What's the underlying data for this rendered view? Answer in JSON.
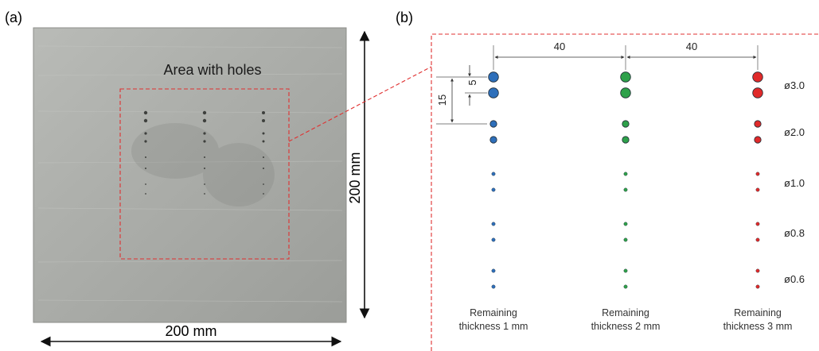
{
  "panel_a": {
    "label": "(a)",
    "area_label": "Area with holes",
    "width_label": "200 mm",
    "height_label": "200 mm"
  },
  "panel_b": {
    "label": "(b)",
    "spacing": [
      {
        "text": "40"
      },
      {
        "text": "40"
      }
    ],
    "offsets": [
      {
        "text": "5"
      },
      {
        "text": "15"
      }
    ],
    "diameters": [
      {
        "text": "ø3.0",
        "value": 3.0
      },
      {
        "text": "ø2.0",
        "value": 2.0
      },
      {
        "text": "ø1.0",
        "value": 1.0
      },
      {
        "text": "ø0.8",
        "value": 0.8
      },
      {
        "text": "ø0.6",
        "value": 0.6
      }
    ],
    "groups": [
      {
        "line1": "Remaining",
        "line2": "thickness 1 mm",
        "color": "#2e6fba"
      },
      {
        "line1": "Remaining",
        "line2": "thickness 2 mm",
        "color": "#2ea14a"
      },
      {
        "line1": "Remaining",
        "line2": "thickness 3 mm",
        "color": "#e02a2a"
      }
    ],
    "colors": {
      "boundary": "#e03030",
      "dimension": "#333333"
    }
  }
}
